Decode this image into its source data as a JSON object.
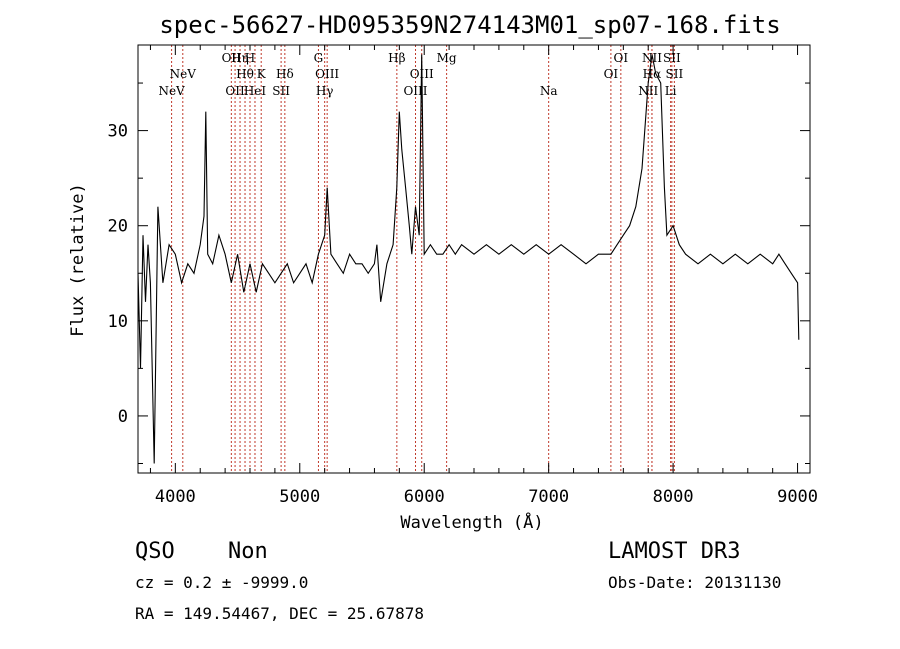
{
  "chart_data": {
    "type": "line",
    "title": "spec-56627-HD095359N274143M01_sp07-168.fits",
    "xlabel": "Wavelength (Å)",
    "ylabel": "Flux (relative)",
    "xlim": [
      3700,
      9100
    ],
    "ylim": [
      -6,
      39
    ],
    "xticks": [
      4000,
      5000,
      6000,
      7000,
      8000,
      9000
    ],
    "yticks": [
      0,
      10,
      20,
      30
    ],
    "series": [
      {
        "name": "flux",
        "x": [
          3700,
          3720,
          3740,
          3760,
          3780,
          3800,
          3830,
          3860,
          3900,
          3950,
          4000,
          4050,
          4100,
          4150,
          4200,
          4230,
          4245,
          4260,
          4300,
          4350,
          4400,
          4450,
          4500,
          4550,
          4600,
          4650,
          4700,
          4750,
          4800,
          4850,
          4900,
          4950,
          5000,
          5050,
          5100,
          5150,
          5200,
          5220,
          5250,
          5300,
          5350,
          5400,
          5450,
          5500,
          5550,
          5600,
          5620,
          5650,
          5700,
          5750,
          5780,
          5800,
          5820,
          5850,
          5880,
          5900,
          5930,
          5960,
          5980,
          6000,
          6050,
          6100,
          6150,
          6200,
          6250,
          6300,
          6400,
          6500,
          6600,
          6700,
          6800,
          6900,
          7000,
          7100,
          7200,
          7300,
          7400,
          7500,
          7550,
          7600,
          7650,
          7700,
          7750,
          7800,
          7830,
          7860,
          7900,
          7930,
          7950,
          8000,
          8050,
          8100,
          8200,
          8300,
          8400,
          8500,
          8600,
          8700,
          8800,
          8850,
          8900,
          8950,
          9000,
          9010
        ],
        "values": [
          15,
          5,
          19,
          12,
          18,
          14,
          -5,
          22,
          14,
          18,
          17,
          14,
          16,
          15,
          18,
          21,
          32,
          17,
          16,
          19,
          17,
          14,
          17,
          13,
          16,
          13,
          16,
          15,
          14,
          15,
          16,
          14,
          15,
          16,
          14,
          17,
          19,
          24,
          17,
          16,
          15,
          17,
          16,
          16,
          15,
          16,
          18,
          12,
          16,
          18,
          24,
          32,
          28,
          24,
          20,
          17,
          22,
          19,
          38,
          17,
          18,
          17,
          17,
          18,
          17,
          18,
          17,
          18,
          17,
          18,
          17,
          18,
          17,
          18,
          17,
          16,
          17,
          17,
          18,
          19,
          20,
          22,
          26,
          35,
          38,
          36,
          35,
          24,
          19,
          20,
          18,
          17,
          16,
          17,
          16,
          17,
          16,
          17,
          16,
          17,
          16,
          15,
          14,
          8
        ]
      }
    ],
    "emission_lines": [
      {
        "name": "NeV",
        "wave": 3970,
        "row": 3
      },
      {
        "name": "NeV",
        "wave": 4060,
        "row": 2
      },
      {
        "name": "OII",
        "wave": 4450,
        "row": 1
      },
      {
        "name": "Hη",
        "wave": 4520,
        "row": 1
      },
      {
        "name": "H",
        "wave": 4600,
        "row": 1
      },
      {
        "name": "OII",
        "wave": 4480,
        "row": 3
      },
      {
        "name": "Hθ",
        "wave": 4560,
        "row": 2
      },
      {
        "name": "HeI",
        "wave": 4640,
        "row": 3
      },
      {
        "name": "K",
        "wave": 4690,
        "row": 2
      },
      {
        "name": "Hδ",
        "wave": 4880,
        "row": 2
      },
      {
        "name": "SII",
        "wave": 4850,
        "row": 3
      },
      {
        "name": "G",
        "wave": 5150,
        "row": 1
      },
      {
        "name": "OIII",
        "wave": 5220,
        "row": 2
      },
      {
        "name": "Hγ",
        "wave": 5200,
        "row": 3
      },
      {
        "name": "Hβ",
        "wave": 5780,
        "row": 1
      },
      {
        "name": "OIII",
        "wave": 5980,
        "row": 2
      },
      {
        "name": "OIII",
        "wave": 5930,
        "row": 3
      },
      {
        "name": "Mg",
        "wave": 6180,
        "row": 1
      },
      {
        "name": "Na",
        "wave": 7000,
        "row": 3
      },
      {
        "name": "OI",
        "wave": 7580,
        "row": 1
      },
      {
        "name": "OI",
        "wave": 7500,
        "row": 2
      },
      {
        "name": "NII",
        "wave": 7830,
        "row": 1
      },
      {
        "name": "Hα",
        "wave": 7830,
        "row": 2
      },
      {
        "name": "NII",
        "wave": 7800,
        "row": 3
      },
      {
        "name": "SII",
        "wave": 7990,
        "row": 1
      },
      {
        "name": "SII",
        "wave": 8010,
        "row": 2
      },
      {
        "name": "Li",
        "wave": 7980,
        "row": 3
      }
    ]
  },
  "info": {
    "class": "QSO",
    "subclass": "Non",
    "survey": "LAMOST DR3",
    "cz": "cz = 0.2 ± -9999.0",
    "obs_date": "Obs-Date: 20131130",
    "coords": "RA = 149.54467, DEC =  25.67878"
  },
  "colors": {
    "marker": "#c0392b",
    "line": "#000000"
  }
}
